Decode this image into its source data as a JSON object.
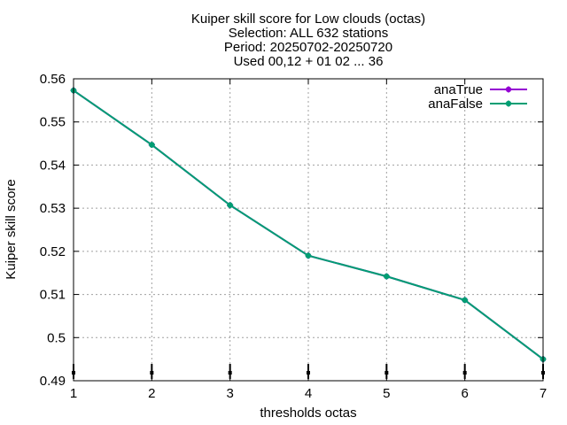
{
  "chart_data": {
    "type": "line",
    "title_lines": [
      "Kuiper skill score  for Low clouds (octas)",
      "Selection: ALL    632 stations",
      "Period: 20250702-20250720",
      "Used 00,12 + 01 02 ... 36"
    ],
    "xlabel": "thresholds octas",
    "ylabel": "Kuiper skill score",
    "x": [
      1,
      2,
      3,
      4,
      5,
      6,
      7
    ],
    "xlim": [
      1,
      7
    ],
    "ylim": [
      0.49,
      0.56
    ],
    "xticks": [
      "1",
      "2",
      "3",
      "4",
      "5",
      "6",
      "7"
    ],
    "yticks": [
      "0.49",
      "0.5",
      "0.51",
      "0.52",
      "0.53",
      "0.54",
      "0.55",
      "0.56"
    ],
    "grid": true,
    "legend_position": "top-right",
    "series": [
      {
        "name": "anaTrue",
        "color": "#9400d3",
        "values": [
          0.5573,
          0.5447,
          0.5307,
          0.519,
          0.5142,
          0.5087,
          0.495
        ]
      },
      {
        "name": "anaFalse",
        "color": "#009e73",
        "values": [
          0.5573,
          0.5447,
          0.5307,
          0.519,
          0.5142,
          0.5087,
          0.495
        ]
      }
    ]
  }
}
